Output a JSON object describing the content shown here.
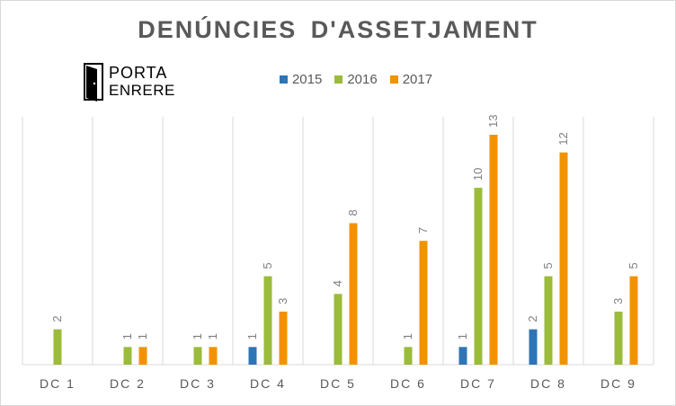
{
  "chart_data": {
    "type": "bar",
    "title": "DENÚNCIES D'ASSETJAMENT",
    "categories": [
      "DC 1",
      "DC 2",
      "DC 3",
      "DC 4",
      "DC 5",
      "DC 6",
      "DC 7",
      "DC 8",
      "DC 9"
    ],
    "series": [
      {
        "name": "2015",
        "color": "#2e75b6",
        "values": [
          null,
          null,
          null,
          1,
          null,
          null,
          1,
          2,
          null
        ]
      },
      {
        "name": "2016",
        "color": "#9bbb3b",
        "values": [
          2,
          1,
          1,
          5,
          4,
          1,
          10,
          5,
          3
        ]
      },
      {
        "name": "2017",
        "color": "#f39200",
        "values": [
          null,
          1,
          1,
          3,
          8,
          7,
          13,
          12,
          5
        ]
      }
    ],
    "ylim": [
      0,
      13
    ],
    "grid": "vertical",
    "legend_position": "top"
  },
  "logo": {
    "line1": "PORTA",
    "line2": "ENRERE"
  }
}
